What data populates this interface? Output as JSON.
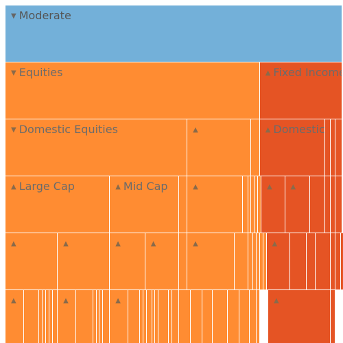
{
  "colors": {
    "moderate": "#73b0d9",
    "equities": "#ff8c32",
    "fixed": "#e55424",
    "background": "#ffffff",
    "label": "#6b6b6b"
  },
  "chart_data": {
    "type": "treemap",
    "title": "",
    "levels": [
      {
        "nodes": [
          {
            "label": "Moderate",
            "value": 100,
            "color": "moderate",
            "expanded": true
          }
        ]
      },
      {
        "nodes": [
          {
            "label": "Equities",
            "value": 75.5,
            "color": "equities",
            "expanded": true
          },
          {
            "label": "Fixed Income",
            "value": 24.5,
            "color": "fixed",
            "expanded": false
          }
        ]
      },
      {
        "nodes": [
          {
            "label": "Domestic Equities",
            "value": 54,
            "color": "equities",
            "expanded": true
          },
          {
            "label": "",
            "value": 19,
            "color": "equities",
            "expanded": false
          },
          {
            "label": "",
            "value": 2.5,
            "color": "equities"
          },
          {
            "label": "Domestic",
            "value": 19.5,
            "color": "fixed",
            "expanded": false
          },
          {
            "label": "",
            "value": 1.5,
            "color": "fixed"
          },
          {
            "label": "",
            "value": 1.5,
            "color": "fixed"
          },
          {
            "label": "",
            "value": 2,
            "color": "fixed"
          }
        ]
      },
      {
        "nodes": [
          {
            "label": "Large Cap",
            "value": 31,
            "color": "equities",
            "expanded": false
          },
          {
            "label": "Mid Cap",
            "value": 20.5,
            "color": "equities",
            "expanded": false
          },
          {
            "label": "",
            "value": 2.5,
            "color": "equities"
          },
          {
            "label": "",
            "value": 16.5,
            "color": "equities",
            "expanded": false
          },
          {
            "label": "",
            "value": 1.5,
            "color": "equities"
          },
          {
            "label": "",
            "value": 1,
            "color": "equities"
          },
          {
            "label": "",
            "value": 1,
            "color": "equities"
          },
          {
            "label": "",
            "value": 1,
            "color": "equities"
          },
          {
            "label": "",
            "value": 1,
            "color": "equities"
          },
          {
            "label": "",
            "value": 7,
            "color": "fixed",
            "expanded": false
          },
          {
            "label": "",
            "value": 7.5,
            "color": "fixed",
            "expanded": false
          },
          {
            "label": "",
            "value": 4.5,
            "color": "fixed"
          },
          {
            "label": "",
            "value": 1.5,
            "color": "fixed"
          },
          {
            "label": "",
            "value": 1.5,
            "color": "fixed"
          },
          {
            "label": "",
            "value": 2,
            "color": "fixed"
          }
        ]
      },
      {
        "nodes": [
          {
            "label": "",
            "value": 15.5,
            "color": "equities",
            "expanded": false
          },
          {
            "label": "",
            "value": 15.5,
            "color": "equities",
            "expanded": false
          },
          {
            "label": "",
            "value": 10.5,
            "color": "equities",
            "expanded": false
          },
          {
            "label": "",
            "value": 10,
            "color": "equities",
            "expanded": false
          },
          {
            "label": "",
            "value": 2.5,
            "color": "equities"
          },
          {
            "label": "",
            "value": 14,
            "color": "equities",
            "expanded": false
          },
          {
            "label": "",
            "value": 4,
            "color": "equities"
          },
          {
            "label": "",
            "value": 1.5,
            "color": "equities"
          },
          {
            "label": "",
            "value": 1,
            "color": "equities"
          },
          {
            "label": "",
            "value": 1,
            "color": "equities"
          },
          {
            "label": "",
            "value": 1,
            "color": "equities"
          },
          {
            "label": "",
            "value": 1,
            "color": "equities"
          },
          {
            "label": "",
            "value": 7,
            "color": "fixed",
            "expanded": false
          },
          {
            "label": "",
            "value": 5,
            "color": "fixed"
          },
          {
            "label": "",
            "value": 2.5,
            "color": "fixed"
          },
          {
            "label": "",
            "value": 4.5,
            "color": "fixed"
          },
          {
            "label": "",
            "value": 1.5,
            "color": "fixed"
          },
          {
            "label": "",
            "value": 1.5,
            "color": "fixed"
          },
          {
            "label": "",
            "value": 2,
            "color": "fixed"
          }
        ]
      },
      {
        "nodes": [
          {
            "label": "",
            "value": 5.5,
            "color": "equities",
            "expanded": false
          },
          {
            "label": "",
            "value": 4.5,
            "color": "equities"
          },
          {
            "label": "",
            "value": 1,
            "color": "equities"
          },
          {
            "label": "",
            "value": 1,
            "color": "equities"
          },
          {
            "label": "",
            "value": 1,
            "color": "equities"
          },
          {
            "label": "",
            "value": 1,
            "color": "equities"
          },
          {
            "label": "",
            "value": 1.5,
            "color": "equities"
          },
          {
            "label": "",
            "value": 5.5,
            "color": "equities",
            "expanded": false
          },
          {
            "label": "",
            "value": 5,
            "color": "equities"
          },
          {
            "label": "",
            "value": 1,
            "color": "equities"
          },
          {
            "label": "",
            "value": 1,
            "color": "equities"
          },
          {
            "label": "",
            "value": 1,
            "color": "equities"
          },
          {
            "label": "",
            "value": 2,
            "color": "equities"
          },
          {
            "label": "",
            "value": 5.5,
            "color": "equities",
            "expanded": false
          },
          {
            "label": "",
            "value": 3.5,
            "color": "equities"
          },
          {
            "label": "",
            "value": 1,
            "color": "equities"
          },
          {
            "label": "",
            "value": 1,
            "color": "equities"
          },
          {
            "label": "",
            "value": 1.5,
            "color": "equities"
          },
          {
            "label": "",
            "value": 1,
            "color": "equities"
          },
          {
            "label": "",
            "value": 1,
            "color": "equities"
          },
          {
            "label": "",
            "value": 3,
            "color": "equities"
          },
          {
            "label": "",
            "value": 1,
            "color": "equities"
          },
          {
            "label": "",
            "value": 2,
            "color": "equities"
          },
          {
            "label": "",
            "value": 3.5,
            "color": "equities"
          },
          {
            "label": "",
            "value": 3.5,
            "color": "equities"
          },
          {
            "label": "",
            "value": 3,
            "color": "equities"
          },
          {
            "label": "",
            "value": 4.5,
            "color": "equities"
          },
          {
            "label": "",
            "value": 3.5,
            "color": "equities"
          },
          {
            "label": "",
            "value": 3,
            "color": "equities"
          },
          {
            "label": "",
            "value": 2,
            "color": "equities"
          },
          {
            "label": "",
            "value": 1,
            "color": "equities"
          },
          {
            "label": "",
            "value": 2.5,
            "color": "background"
          },
          {
            "label": "",
            "value": 18.5,
            "color": "fixed",
            "expanded": false
          },
          {
            "label": "",
            "value": 1.5,
            "color": "fixed"
          },
          {
            "label": "",
            "value": 4.5,
            "color": "background"
          },
          {
            "label": "",
            "value": 1.5,
            "color": "fixed"
          },
          {
            "label": "",
            "value": 2,
            "color": "fixed"
          }
        ]
      }
    ]
  }
}
